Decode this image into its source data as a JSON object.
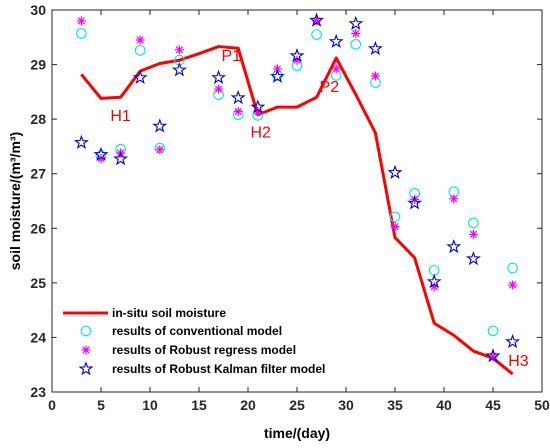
{
  "chart_data": {
    "type": "line",
    "xlabel": "time/(day)",
    "ylabel": "soil moisture/(m³/m³)",
    "xlim": [
      0,
      50
    ],
    "ylim": [
      23,
      30
    ],
    "xticks": [
      0,
      5,
      10,
      15,
      20,
      25,
      30,
      35,
      40,
      45,
      50
    ],
    "yticks": [
      23,
      24,
      25,
      26,
      27,
      28,
      29,
      30
    ],
    "grid": false,
    "legend_position": "bottom-left",
    "series": [
      {
        "name": "in-situ soil moisture",
        "kind": "line",
        "color": "#ff0000",
        "x": [
          3,
          5,
          7,
          9,
          11,
          13,
          15,
          17,
          19,
          21,
          23,
          25,
          27,
          29,
          31,
          33,
          35,
          37,
          39,
          41,
          43,
          45,
          47
        ],
        "y": [
          28.82,
          28.38,
          28.4,
          28.88,
          29.02,
          29.08,
          29.2,
          29.33,
          29.3,
          28.08,
          28.22,
          28.22,
          28.4,
          29.12,
          28.45,
          27.75,
          25.83,
          25.46,
          24.26,
          24.04,
          23.75,
          23.62,
          23.33
        ]
      },
      {
        "name": "results of conventional model",
        "kind": "circle",
        "color": "#00e5ee",
        "x": [
          3,
          5,
          7,
          9,
          11,
          13,
          17,
          19,
          21,
          23,
          25,
          27,
          29,
          31,
          33,
          35,
          37,
          39,
          41,
          43,
          45,
          47
        ],
        "y": [
          29.57,
          27.33,
          27.45,
          29.26,
          27.47,
          29.08,
          28.45,
          28.08,
          28.07,
          28.8,
          28.98,
          29.55,
          28.8,
          29.37,
          28.67,
          26.21,
          26.64,
          25.23,
          26.67,
          26.1,
          24.12,
          25.27
        ]
      },
      {
        "name": "results of Robust regress model",
        "kind": "asterisk",
        "color": "#ff00ff",
        "x": [
          3,
          5,
          7,
          9,
          11,
          13,
          17,
          19,
          21,
          23,
          25,
          27,
          29,
          31,
          33,
          35,
          37,
          39,
          41,
          43,
          45,
          47
        ],
        "y": [
          29.8,
          27.28,
          27.38,
          29.45,
          27.44,
          29.27,
          28.55,
          28.14,
          28.14,
          28.92,
          29.08,
          29.8,
          28.92,
          29.57,
          28.79,
          26.03,
          26.53,
          24.93,
          26.54,
          25.89,
          23.65,
          24.96
        ]
      },
      {
        "name": "results of Robust Kalman filter model",
        "kind": "star",
        "color": "#0000cc",
        "x": [
          3,
          5,
          7,
          9,
          11,
          13,
          17,
          19,
          21,
          23,
          25,
          27,
          29,
          31,
          33,
          35,
          37,
          39,
          41,
          43,
          45,
          47
        ],
        "y": [
          27.57,
          27.35,
          27.27,
          28.76,
          27.87,
          28.9,
          28.76,
          28.39,
          28.22,
          28.78,
          29.16,
          29.81,
          29.42,
          29.75,
          29.29,
          27.02,
          26.46,
          25.02,
          25.66,
          25.44,
          23.66,
          23.92
        ]
      }
    ],
    "annotations": [
      {
        "text": "H1",
        "x": 7.0,
        "y": 27.97
      },
      {
        "text": "P1",
        "x": 18.3,
        "y": 29.07
      },
      {
        "text": "H2",
        "x": 21.3,
        "y": 27.66
      },
      {
        "text": "P2",
        "x": 28.3,
        "y": 28.5
      },
      {
        "text": "H3",
        "x": 47.6,
        "y": 23.48
      }
    ]
  }
}
